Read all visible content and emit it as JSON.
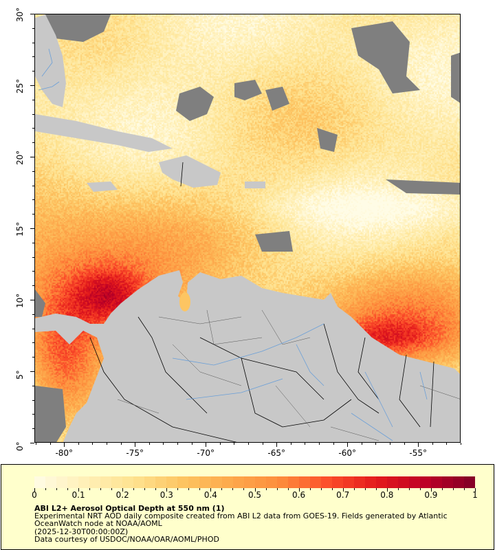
{
  "map": {
    "x_axis_labels": [
      "-80°",
      "-75°",
      "-70°",
      "-65°",
      "-60°",
      "-55°"
    ],
    "x_axis_values": [
      -80,
      -75,
      -70,
      -65,
      -60,
      -55
    ],
    "y_axis_labels": [
      "30°",
      "25°",
      "20°",
      "15°",
      "10°",
      "5°",
      "0°"
    ],
    "y_axis_values": [
      30,
      25,
      20,
      15,
      10,
      5,
      0
    ],
    "lon_range": [
      -82.1,
      -52.0
    ],
    "lat_range": [
      0,
      30
    ],
    "colors": {
      "land": "#c8c8c8",
      "no_data": "#7f7f7f",
      "rivers": "#6a9fd8",
      "borders": "#555555"
    }
  },
  "legend": {
    "colorbar_labels": [
      "0",
      "0.1",
      "0.2",
      "0.3",
      "0.4",
      "0.5",
      "0.6",
      "0.7",
      "0.8",
      "0.9",
      "1"
    ],
    "colorbar_range": [
      0,
      1
    ],
    "colormap": [
      "#fffce6",
      "#fff0b8",
      "#fee391",
      "#fdc562",
      "#fda94c",
      "#fd8d3c",
      "#fc4e2a",
      "#e31a1c",
      "#bd0026",
      "#800026"
    ],
    "title": "ABI L2+ Aerosol Optical Depth at 550 nm (1)",
    "line1": "Experimental NRT AOD daily composite created from ABI L2 data from GOES-19. Fields generated by Atlantic",
    "line2": "OceanWatch node at NOAA/AOML",
    "line3": "(2025-12-30T00:00:00Z)",
    "line4": "Data courtesy of USDOC/NOAA/OAR/AOML/PHOD",
    "background": "#ffffcc"
  }
}
